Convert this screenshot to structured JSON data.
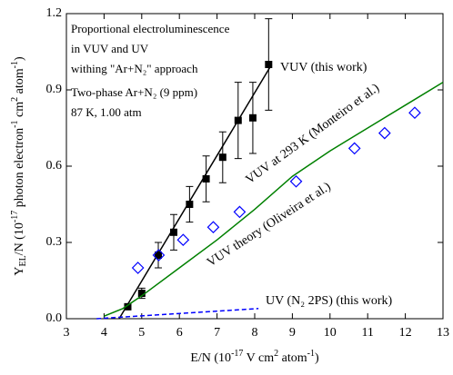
{
  "chart_data": {
    "type": "scatter",
    "xlabel_parts": [
      [
        "E/N (10",
        ""
      ],
      [
        "-17",
        "sup"
      ],
      [
        " V cm",
        ""
      ],
      [
        "2",
        "sup"
      ],
      [
        " atom",
        ""
      ],
      [
        "-1",
        "sup"
      ],
      [
        ")",
        ""
      ]
    ],
    "ylabel_parts": [
      [
        "Y",
        ""
      ],
      [
        "EL",
        "sub"
      ],
      [
        "/N (10",
        ""
      ],
      [
        "-17",
        "sup"
      ],
      [
        " photon electron",
        ""
      ],
      [
        "-1",
        "sup"
      ],
      [
        " cm",
        ""
      ],
      [
        "2",
        "sup"
      ],
      [
        " atom",
        ""
      ],
      [
        "-1",
        "sup"
      ],
      [
        ")",
        ""
      ]
    ],
    "annotations": [
      "Proportional electroluminescence",
      "in VUV and UV",
      "withing \"Ar+N₂\" approach",
      "Two-phase Ar+N₂ (9 ppm)",
      "87 K, 1.00 atm"
    ],
    "xlim": [
      3,
      13
    ],
    "xticks": [
      3,
      4,
      5,
      6,
      7,
      8,
      9,
      10,
      11,
      12,
      13
    ],
    "ylim": [
      0,
      1.2
    ],
    "yticks": [
      {
        "value": 0,
        "label": "0.0"
      },
      0.3,
      0.6,
      0.9,
      1.2
    ],
    "series": [
      {
        "name": "VUV (this work)",
        "color": "#000000",
        "marker": "square",
        "x": [
          4.63,
          5.0,
          5.44,
          5.85,
          6.27,
          6.71,
          7.15,
          7.56,
          7.95,
          8.37
        ],
        "values": [
          0.047,
          0.1,
          0.25,
          0.34,
          0.45,
          0.55,
          0.635,
          0.78,
          0.79,
          1.0
        ],
        "errors": [
          0.01,
          0.02,
          0.05,
          0.07,
          0.07,
          0.09,
          0.1,
          0.15,
          0.14,
          0.18
        ]
      },
      {
        "color": "#000000",
        "marker": "none",
        "x": [
          4.4,
          8.45
        ],
        "values": [
          0,
          1.0
        ]
      },
      {
        "name": "VUV at 293 K (Monteiro et al.)",
        "color": "#0000ff",
        "marker": "diamond",
        "x": [
          4.9,
          5.45,
          6.1,
          6.9,
          7.6,
          9.1,
          10.65,
          11.45,
          12.25
        ],
        "values": [
          0.2,
          0.25,
          0.31,
          0.36,
          0.42,
          0.54,
          0.67,
          0.73,
          0.81
        ]
      },
      {
        "name": "VUV theory (Oliveira et al.)",
        "color": "#008000",
        "marker": "none",
        "x": [
          4.0,
          4.5,
          5,
          6,
          7,
          8,
          9,
          10,
          11,
          12,
          13
        ],
        "values": [
          0.01,
          0.04,
          0.09,
          0.2,
          0.31,
          0.43,
          0.56,
          0.66,
          0.75,
          0.84,
          0.93
        ]
      },
      {
        "name": "UV (N₂ 2PS) (this work)",
        "color": "#0000ff",
        "marker": "none",
        "dashed": true,
        "x": [
          3.8,
          8.1
        ],
        "values": [
          0,
          0.04
        ]
      }
    ]
  }
}
